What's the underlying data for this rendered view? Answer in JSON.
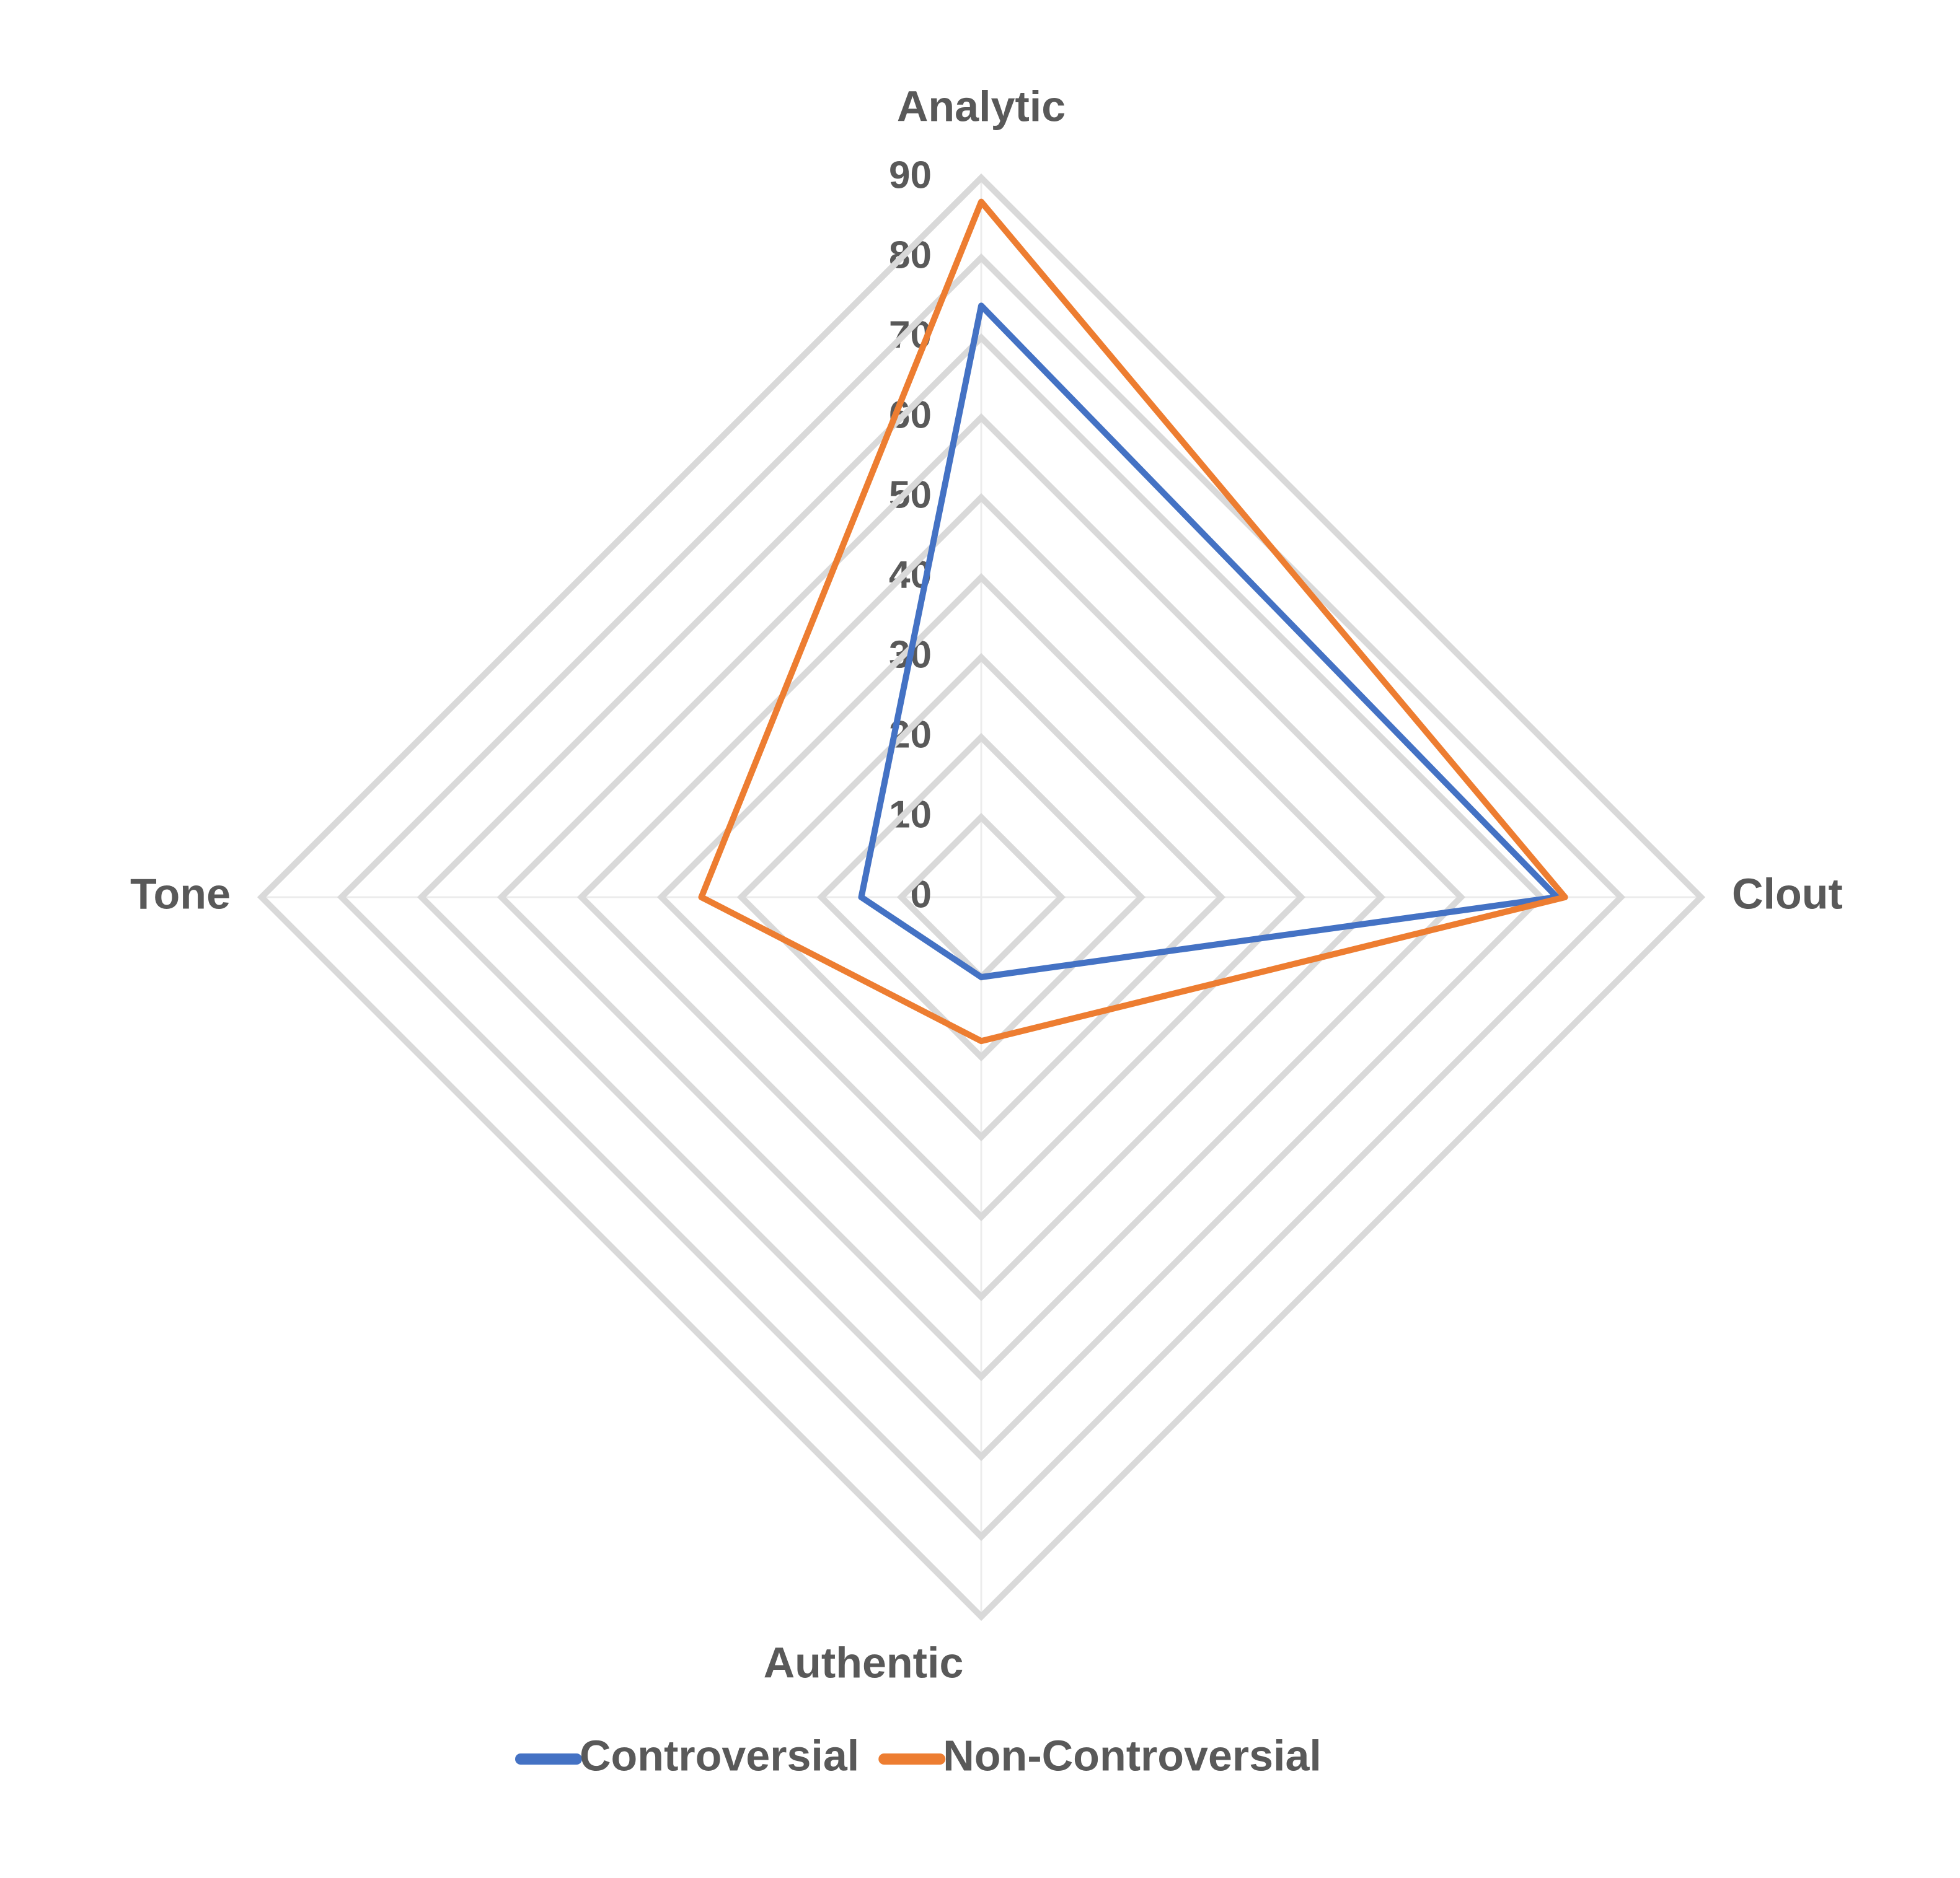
{
  "chart_data": {
    "type": "radar",
    "categories": [
      "Analytic",
      "Clout",
      "Authentic",
      "Tone"
    ],
    "series": [
      {
        "name": "Controversial",
        "color": "#4472c4",
        "values": [
          74,
          72,
          10,
          15
        ]
      },
      {
        "name": "Non-Controversial",
        "color": "#ed7d31",
        "values": [
          87,
          73,
          18,
          35
        ]
      }
    ],
    "ylim": [
      0,
      90
    ],
    "yticks": [
      0,
      10,
      20,
      30,
      40,
      50,
      60,
      70,
      80,
      90
    ],
    "grid": true,
    "legend": "bottom"
  }
}
